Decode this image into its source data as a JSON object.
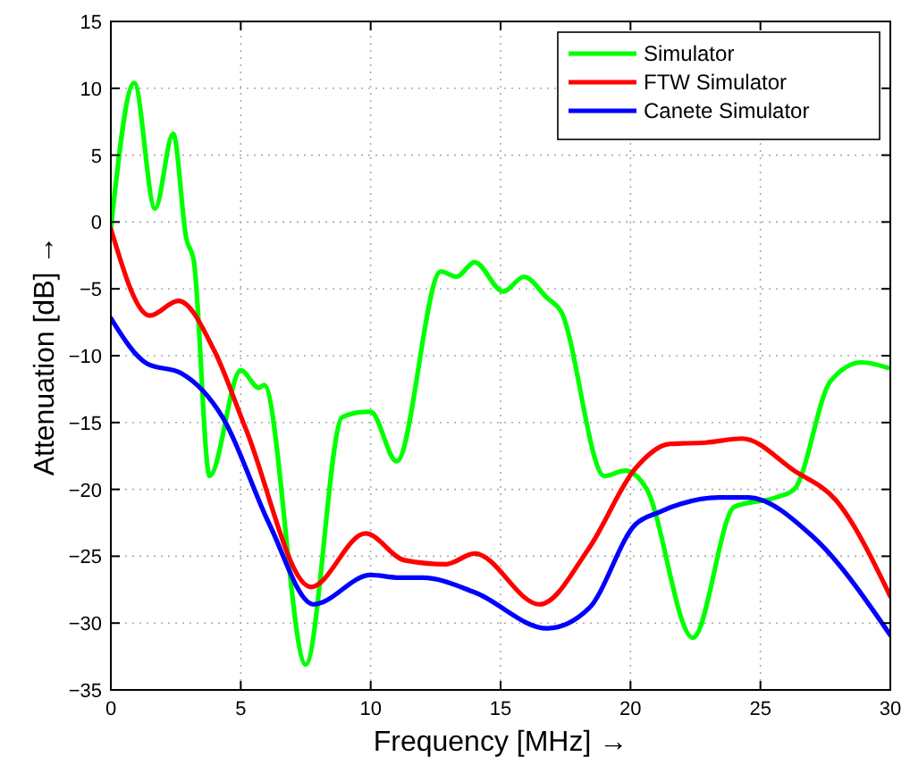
{
  "chart_data": {
    "type": "line",
    "xlabel": "Frequency [MHz] →",
    "ylabel": "Attenuation [dB] →",
    "xlim": [
      0,
      30
    ],
    "xticks": [
      0,
      5,
      10,
      15,
      20,
      25,
      30
    ],
    "ylim": [
      -35,
      15
    ],
    "yticks": [
      -35,
      -30,
      -25,
      -20,
      -15,
      -10,
      -5,
      0,
      5,
      10,
      15
    ],
    "grid": true,
    "legend": "top right",
    "line_style": "solid",
    "marker": "none",
    "series": [
      {
        "name": "Simulator",
        "color": "#00ff00",
        "x": [
          0,
          0.9,
          1.7,
          2.4,
          2.9,
          3.2,
          3.8,
          5.0,
          5.7,
          5.9,
          7.5,
          8.9,
          9.8,
          10.0,
          11.0,
          12.7,
          13.3,
          14.0,
          15.1,
          15.9,
          16.8,
          17.3,
          19.0,
          19.8,
          20.6,
          22.4,
          24.0,
          25.6,
          26.3,
          27.7,
          28.9,
          29.9
        ],
        "values": [
          -0.5,
          10.4,
          1.0,
          6.6,
          -1.2,
          -3.0,
          -19.0,
          -11.1,
          -12.4,
          -12.2,
          -33.1,
          -14.6,
          -14.2,
          -14.2,
          -17.9,
          -3.7,
          -4.1,
          -3.0,
          -5.2,
          -4.1,
          -5.7,
          -6.6,
          -19.0,
          -18.6,
          -19.9,
          -31.1,
          -21.3,
          -20.6,
          -20.0,
          -11.9,
          -10.5,
          -10.9
        ]
      },
      {
        "name": "FTW Simulator",
        "color": "#ff0000",
        "x": [
          0,
          1.5,
          2.6,
          4.0,
          5.2,
          7.7,
          9.8,
          11.3,
          12.9,
          14.0,
          16.5,
          18.4,
          20.2,
          21.5,
          22.9,
          24.3,
          26.3,
          27.9,
          30
        ],
        "values": [
          -0.5,
          -7.0,
          -5.9,
          -9.7,
          -15.5,
          -27.3,
          -23.3,
          -25.3,
          -25.6,
          -24.8,
          -28.6,
          -24.4,
          -18.4,
          -16.6,
          -16.5,
          -16.2,
          -18.6,
          -20.8,
          -28.0
        ]
      },
      {
        "name": "Canete Simulator",
        "color": "#0000ff",
        "x": [
          0,
          1.4,
          2.7,
          4.3,
          6.1,
          7.8,
          10.0,
          11.1,
          12.0,
          14.0,
          16.8,
          18.4,
          20.2,
          21.1,
          23.4,
          24.5,
          27.0,
          30
        ],
        "values": [
          -7.2,
          -10.6,
          -11.3,
          -14.6,
          -22.6,
          -28.6,
          -26.4,
          -26.6,
          -26.6,
          -27.7,
          -30.4,
          -28.9,
          -22.6,
          -21.7,
          -20.6,
          -20.6,
          -23.5,
          -30.9
        ]
      }
    ]
  }
}
